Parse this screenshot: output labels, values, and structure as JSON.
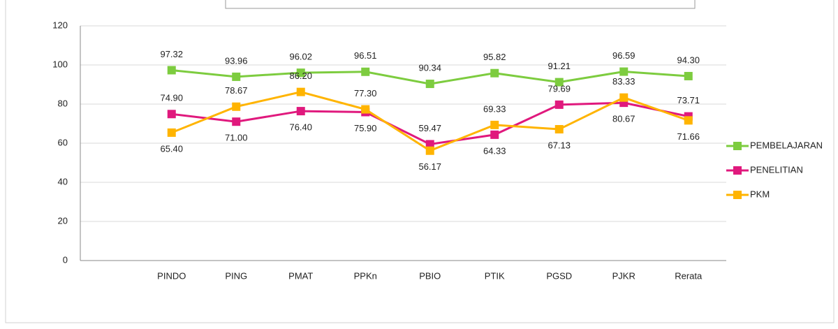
{
  "chart_data": {
    "type": "line",
    "categories": [
      null,
      "PINDO",
      "PING",
      "PMAT",
      "PPKn",
      "PBIO",
      "PTIK",
      "PGSD",
      "PJKR",
      "Rerata"
    ],
    "series": [
      {
        "name": "PEMBELAJARAN",
        "color": "#7dcc3f",
        "values": [
          null,
          97.32,
          93.96,
          96.02,
          96.51,
          90.34,
          95.82,
          91.21,
          96.59,
          94.3
        ],
        "value_labels": [
          null,
          "97.32",
          "93.96",
          "96.02",
          "96.51",
          "90.34",
          "95.82",
          "91.21",
          "96.59",
          "94.30"
        ]
      },
      {
        "name": "PENELITIAN",
        "color": "#e0197d",
        "values": [
          null,
          74.9,
          71.0,
          76.4,
          75.9,
          59.47,
          64.33,
          79.69,
          80.67,
          73.71
        ],
        "value_labels": [
          null,
          "74.90",
          "71.00",
          "76.40",
          "75.90",
          "59.47",
          "64.33",
          "79.69",
          "80.67",
          "73.71"
        ]
      },
      {
        "name": "PKM",
        "color": "#ffb400",
        "values": [
          null,
          65.4,
          78.67,
          86.2,
          77.3,
          56.17,
          69.33,
          67.13,
          83.33,
          71.66
        ],
        "value_labels": [
          null,
          "65.40",
          "78.67",
          "86.20",
          "77.30",
          "56.17",
          "69.33",
          "67.13",
          "83.33",
          "71.66"
        ]
      }
    ],
    "ylim": [
      0,
      120
    ],
    "yticks": [
      0,
      20,
      40,
      60,
      80,
      100,
      120
    ],
    "grid": true,
    "legend": "right"
  }
}
